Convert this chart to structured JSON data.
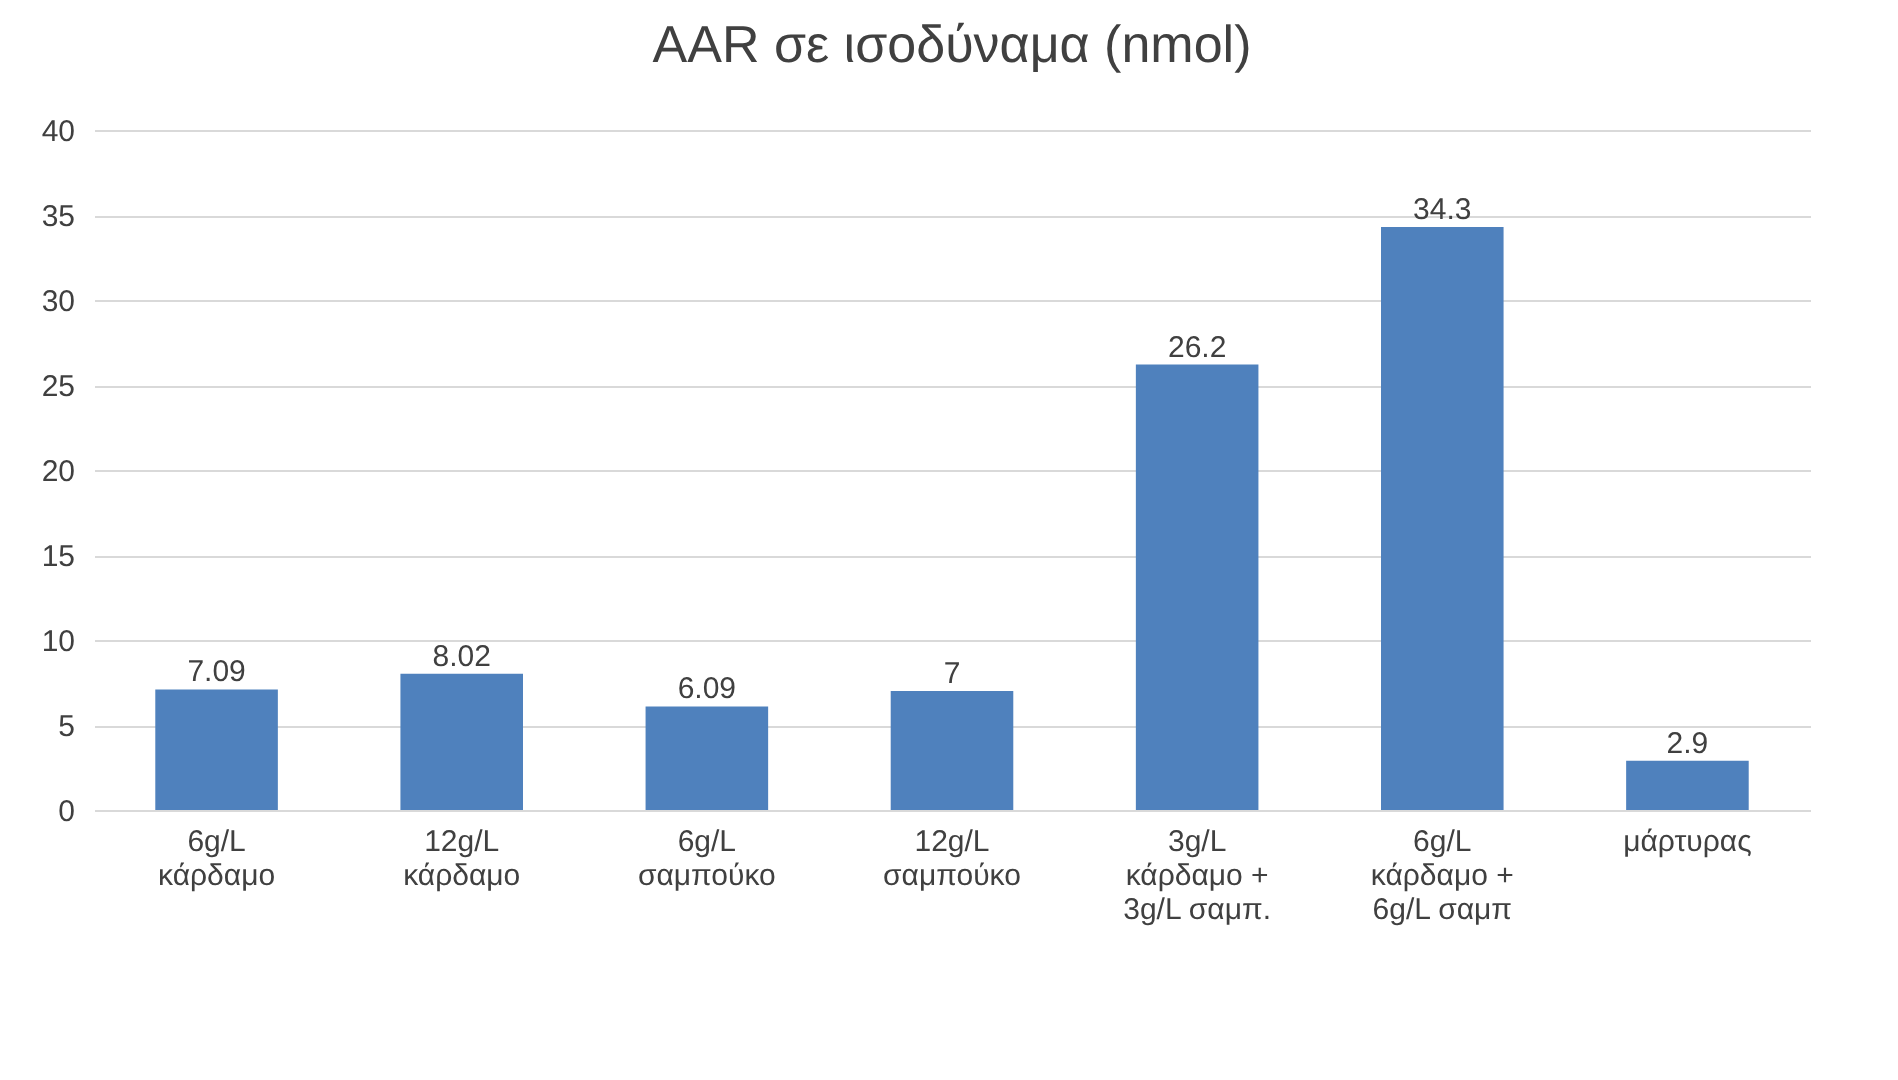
{
  "chart_data": {
    "type": "bar",
    "title": "AAR σε ισοδύναμα (nmol)",
    "categories": [
      "6g/L\nκάρδαμο",
      "12g/L\nκάρδαμο",
      "6g/L\nσαμπούκο",
      "12g/L\nσαμπούκο",
      "3g/L\nκάρδαμο +\n3g/L σαμπ.",
      "6g/L\nκάρδαμο +\n6g/L σαμπ",
      "μάρτυρας"
    ],
    "values": [
      7.09,
      8.02,
      6.09,
      7,
      26.2,
      34.3,
      2.9
    ],
    "color": "#4f81bd",
    "ylim": [
      0,
      40
    ],
    "yticks": [
      0,
      5,
      10,
      15,
      20,
      25,
      30,
      35,
      40
    ],
    "grid": "y",
    "data_labels": true
  }
}
